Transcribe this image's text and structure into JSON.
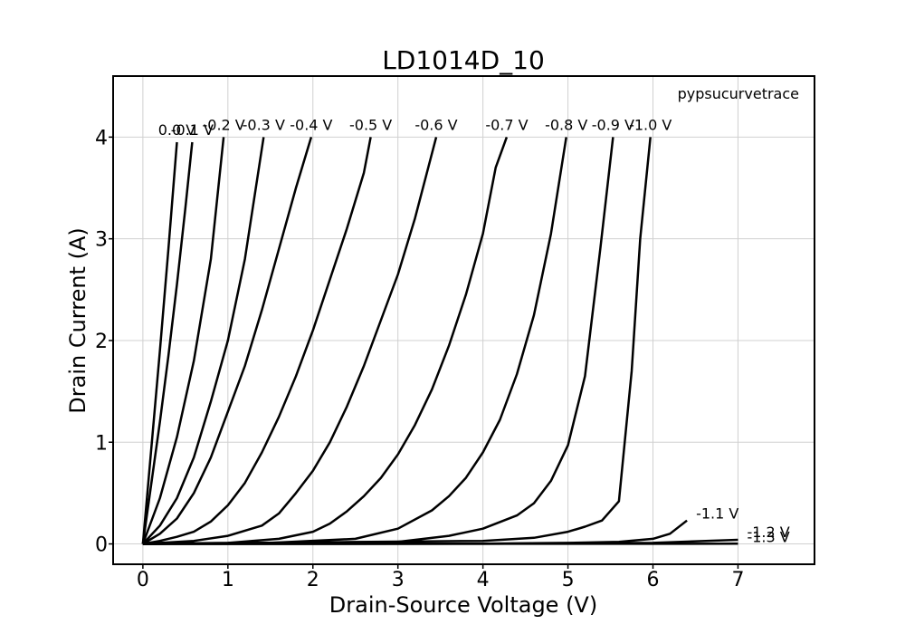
{
  "chart_data": {
    "type": "line",
    "title": "LD1014D_10",
    "xlabel": "Drain-Source Voltage (V)",
    "ylabel": "Drain Current (A)",
    "xlim": [
      -0.35,
      7.9
    ],
    "ylim": [
      -0.2,
      4.6
    ],
    "xticks": [
      0,
      1,
      2,
      3,
      4,
      5,
      6,
      7
    ],
    "yticks": [
      0,
      1,
      2,
      3,
      4
    ],
    "grid": true,
    "watermark": "pypsucurvetrace",
    "series": [
      {
        "name": "0.0 V",
        "label_at": [
          0.4,
          3.95
        ],
        "points": [
          [
            0,
            0
          ],
          [
            0.1,
            0.95
          ],
          [
            0.2,
            1.9
          ],
          [
            0.3,
            2.9
          ],
          [
            0.4,
            3.95
          ]
        ]
      },
      {
        "name": "-0.1 V",
        "label_at": [
          0.58,
          3.95
        ],
        "points": [
          [
            0,
            0
          ],
          [
            0.1,
            0.6
          ],
          [
            0.2,
            1.2
          ],
          [
            0.3,
            1.85
          ],
          [
            0.4,
            2.55
          ],
          [
            0.5,
            3.3
          ],
          [
            0.58,
            3.95
          ]
        ]
      },
      {
        "name": "-0.2 V",
        "label_at": [
          0.95,
          4.0
        ],
        "points": [
          [
            0,
            0
          ],
          [
            0.2,
            0.45
          ],
          [
            0.4,
            1.05
          ],
          [
            0.6,
            1.8
          ],
          [
            0.8,
            2.8
          ],
          [
            0.95,
            4.0
          ]
        ]
      },
      {
        "name": "-0.3 V",
        "label_at": [
          1.42,
          4.0
        ],
        "points": [
          [
            0,
            0
          ],
          [
            0.2,
            0.18
          ],
          [
            0.4,
            0.45
          ],
          [
            0.6,
            0.85
          ],
          [
            0.8,
            1.4
          ],
          [
            1.0,
            2.0
          ],
          [
            1.2,
            2.8
          ],
          [
            1.42,
            4.0
          ]
        ]
      },
      {
        "name": "-0.4 V",
        "label_at": [
          1.98,
          4.0
        ],
        "points": [
          [
            0,
            0
          ],
          [
            0.2,
            0.1
          ],
          [
            0.4,
            0.25
          ],
          [
            0.6,
            0.5
          ],
          [
            0.8,
            0.85
          ],
          [
            1.0,
            1.3
          ],
          [
            1.2,
            1.75
          ],
          [
            1.4,
            2.3
          ],
          [
            1.6,
            2.9
          ],
          [
            1.8,
            3.5
          ],
          [
            1.98,
            4.0
          ]
        ]
      },
      {
        "name": "-0.5 V",
        "label_at": [
          2.68,
          4.0
        ],
        "points": [
          [
            0,
            0
          ],
          [
            0.2,
            0.03
          ],
          [
            0.4,
            0.07
          ],
          [
            0.6,
            0.12
          ],
          [
            0.8,
            0.22
          ],
          [
            1.0,
            0.38
          ],
          [
            1.2,
            0.6
          ],
          [
            1.4,
            0.9
          ],
          [
            1.6,
            1.25
          ],
          [
            1.8,
            1.65
          ],
          [
            2.0,
            2.1
          ],
          [
            2.2,
            2.6
          ],
          [
            2.4,
            3.1
          ],
          [
            2.6,
            3.65
          ],
          [
            2.68,
            4.0
          ]
        ]
      },
      {
        "name": "-0.6 V",
        "label_at": [
          3.45,
          4.0
        ],
        "points": [
          [
            0,
            0
          ],
          [
            0.6,
            0.03
          ],
          [
            1.0,
            0.08
          ],
          [
            1.4,
            0.18
          ],
          [
            1.6,
            0.3
          ],
          [
            1.8,
            0.5
          ],
          [
            2.0,
            0.72
          ],
          [
            2.2,
            1.0
          ],
          [
            2.4,
            1.35
          ],
          [
            2.6,
            1.75
          ],
          [
            2.8,
            2.2
          ],
          [
            3.0,
            2.65
          ],
          [
            3.2,
            3.2
          ],
          [
            3.45,
            4.0
          ]
        ]
      },
      {
        "name": "-0.7 V",
        "label_at": [
          4.28,
          4.0
        ],
        "points": [
          [
            0,
            0
          ],
          [
            1.0,
            0.01
          ],
          [
            1.6,
            0.05
          ],
          [
            2.0,
            0.12
          ],
          [
            2.2,
            0.2
          ],
          [
            2.4,
            0.32
          ],
          [
            2.6,
            0.47
          ],
          [
            2.8,
            0.65
          ],
          [
            3.0,
            0.88
          ],
          [
            3.2,
            1.17
          ],
          [
            3.4,
            1.52
          ],
          [
            3.6,
            1.95
          ],
          [
            3.8,
            2.45
          ],
          [
            4.0,
            3.05
          ],
          [
            4.15,
            3.7
          ],
          [
            4.28,
            4.0
          ]
        ]
      },
      {
        "name": "-0.8 V",
        "label_at": [
          4.98,
          4.0
        ],
        "points": [
          [
            0,
            0
          ],
          [
            1.5,
            0.01
          ],
          [
            2.5,
            0.05
          ],
          [
            3.0,
            0.15
          ],
          [
            3.4,
            0.33
          ],
          [
            3.6,
            0.47
          ],
          [
            3.8,
            0.65
          ],
          [
            4.0,
            0.9
          ],
          [
            4.2,
            1.22
          ],
          [
            4.4,
            1.67
          ],
          [
            4.6,
            2.25
          ],
          [
            4.8,
            3.05
          ],
          [
            4.98,
            4.0
          ]
        ]
      },
      {
        "name": "-0.9 V",
        "label_at": [
          5.53,
          4.0
        ],
        "points": [
          [
            0,
            0
          ],
          [
            3.0,
            0.02
          ],
          [
            3.6,
            0.08
          ],
          [
            4.0,
            0.15
          ],
          [
            4.4,
            0.28
          ],
          [
            4.6,
            0.4
          ],
          [
            4.8,
            0.62
          ],
          [
            5.0,
            0.97
          ],
          [
            5.2,
            1.65
          ],
          [
            5.38,
            2.9
          ],
          [
            5.53,
            4.0
          ]
        ]
      },
      {
        "name": "-1.0 V",
        "label_at": [
          5.97,
          4.0
        ],
        "points": [
          [
            0,
            0
          ],
          [
            4.0,
            0.03
          ],
          [
            4.6,
            0.06
          ],
          [
            5.0,
            0.12
          ],
          [
            5.2,
            0.17
          ],
          [
            5.4,
            0.23
          ],
          [
            5.6,
            0.42
          ],
          [
            5.75,
            1.7
          ],
          [
            5.85,
            3.0
          ],
          [
            5.97,
            4.0
          ]
        ]
      },
      {
        "name": "-1.1 V",
        "label_at": [
          6.4,
          0.23
        ],
        "points": [
          [
            0,
            0
          ],
          [
            4.0,
            0.003
          ],
          [
            5.0,
            0.01
          ],
          [
            5.6,
            0.02
          ],
          [
            6.0,
            0.05
          ],
          [
            6.2,
            0.1
          ],
          [
            6.4,
            0.23
          ]
        ]
      },
      {
        "name": "-1.2 V",
        "label_at": [
          7.0,
          0.05
        ],
        "points": [
          [
            0,
            0
          ],
          [
            4.0,
            0.001
          ],
          [
            6.0,
            0.01
          ],
          [
            7.0,
            0.04
          ]
        ]
      },
      {
        "name": "-1.3 V",
        "label_at": [
          7.0,
          0.0
        ],
        "points": [
          [
            0,
            0
          ],
          [
            7.0,
            0.002
          ]
        ]
      }
    ]
  }
}
